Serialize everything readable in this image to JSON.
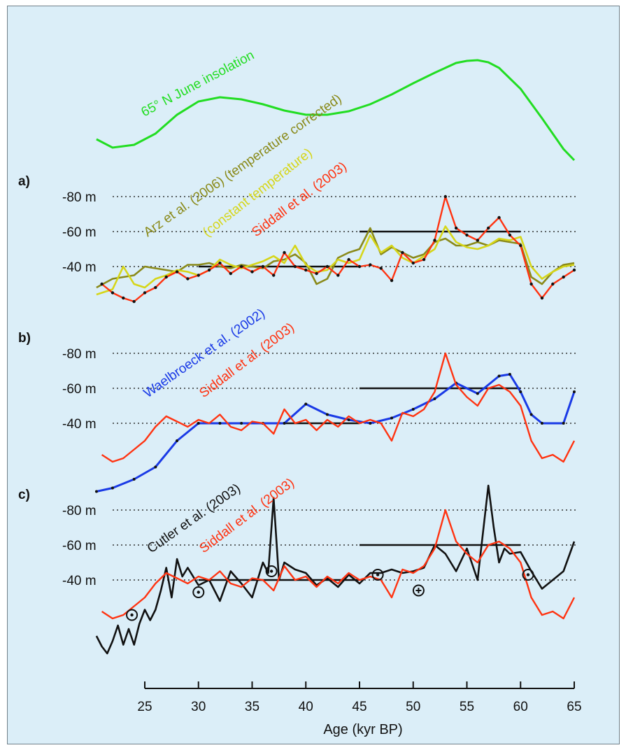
{
  "chart_data": {
    "type": "line",
    "xlabel": "Age (kyr BP)",
    "x_ticks": [
      25,
      30,
      35,
      40,
      45,
      50,
      55,
      60,
      65
    ],
    "xlim": [
      20.5,
      65
    ],
    "colors": {
      "insolation": "#22dd22",
      "siddall": "#ff3311",
      "arz_temp": "#8a8a1a",
      "arz_const": "#d6d61a",
      "waelbroeck": "#1a3ae6",
      "cutler": "#111111"
    },
    "insolation": {
      "name": "65° N June insolation",
      "x": [
        20.5,
        22,
        24,
        26,
        28,
        30,
        32,
        34,
        36,
        38,
        40,
        42,
        44,
        46,
        48,
        50,
        52,
        54,
        55,
        56,
        57,
        58,
        60,
        62,
        64,
        65
      ],
      "level": [
        0.2,
        0.08,
        0.12,
        0.28,
        0.55,
        0.74,
        0.8,
        0.77,
        0.7,
        0.61,
        0.55,
        0.55,
        0.6,
        0.7,
        0.84,
        1.0,
        1.15,
        1.29,
        1.32,
        1.33,
        1.3,
        1.22,
        0.92,
        0.5,
        0.06,
        -0.1
      ]
    },
    "panels": [
      {
        "label": "a)",
        "y_ticks": [
          "-80 m",
          "-60 m",
          "-40 m"
        ],
        "hlines": [
          {
            "from": 30,
            "to": 45,
            "y": -40
          },
          {
            "from": 45,
            "to": 60,
            "y": -60
          }
        ],
        "series": [
          {
            "name": "Arz et al. (2006) (temperature corrected)",
            "key": "arz_temp",
            "x": [
              20.5,
              22,
              24,
              25,
              26,
              27,
              28,
              29,
              30,
              31,
              32,
              33,
              34,
              35,
              36,
              37,
              38,
              39,
              40,
              41,
              42,
              43,
              44,
              45,
              46,
              47,
              48,
              49,
              50,
              51,
              52,
              53,
              54,
              55,
              56,
              57,
              58,
              59,
              60,
              61,
              62,
              63,
              64,
              65
            ],
            "y": [
              -28,
              -33,
              -35,
              -40,
              -39,
              -38,
              -37,
              -41,
              -41,
              -42,
              -40,
              -39,
              -41,
              -40,
              -39,
              -43,
              -44,
              -47,
              -42,
              -30,
              -33,
              -45,
              -48,
              -50,
              -62,
              -47,
              -51,
              -48,
              -45,
              -47,
              -54,
              -56,
              -52,
              -52,
              -54,
              -52,
              -55,
              -54,
              -53,
              -34,
              -30,
              -37,
              -41,
              -42
            ]
          },
          {
            "name": "(constant temperature)",
            "key": "arz_const",
            "x": [
              20.5,
              22,
              23,
              24,
              25,
              26,
              27,
              28,
              29,
              30,
              31,
              32,
              33,
              34,
              35,
              36,
              37,
              38,
              39,
              40,
              41,
              42,
              43,
              44,
              45,
              46,
              47,
              48,
              49,
              50,
              51,
              52,
              53,
              54,
              55,
              56,
              57,
              58,
              59,
              60,
              61,
              62,
              63,
              64,
              65
            ],
            "y": [
              -24,
              -27,
              -40,
              -30,
              -28,
              -33,
              -35,
              -38,
              -37,
              -35,
              -38,
              -44,
              -41,
              -39,
              -41,
              -43,
              -46,
              -42,
              -52,
              -41,
              -37,
              -38,
              -44,
              -42,
              -44,
              -58,
              -48,
              -52,
              -45,
              -42,
              -46,
              -50,
              -63,
              -54,
              -51,
              -50,
              -52,
              -56,
              -55,
              -57,
              -40,
              -33,
              -37,
              -40,
              -41
            ]
          },
          {
            "name": "Siddall et al. (2003)",
            "key": "siddall",
            "x": [
              21,
              22,
              23,
              24,
              25,
              26,
              27,
              28,
              29,
              30,
              31,
              32,
              33,
              34,
              35,
              36,
              37,
              38,
              39,
              40,
              41,
              42,
              43,
              44,
              45,
              46,
              47,
              48,
              49,
              50,
              51,
              52,
              53,
              54,
              55,
              56,
              57,
              58,
              59,
              60,
              61,
              62,
              63,
              64,
              65
            ],
            "y": [
              -30,
              -25,
              -22,
              -20,
              -25,
              -28,
              -34,
              -37,
              -33,
              -35,
              -38,
              -42,
              -36,
              -40,
              -37,
              -40,
              -35,
              -48,
              -40,
              -38,
              -36,
              -40,
              -35,
              -44,
              -40,
              -41,
              -39,
              -32,
              -48,
              -42,
              -44,
              -55,
              -80,
              -62,
              -58,
              -55,
              -62,
              -68,
              -58,
              -52,
              -30,
              -22,
              -30,
              -34,
              -38
            ]
          }
        ]
      },
      {
        "label": "b)",
        "y_ticks": [
          "-80 m",
          "-60 m",
          "-40 m"
        ],
        "hlines": [
          {
            "from": 30,
            "to": 45,
            "y": -40
          },
          {
            "from": 45,
            "to": 60,
            "y": -60
          }
        ],
        "series": [
          {
            "name": "Waelbroeck et al. (2002)",
            "key": "waelbroeck",
            "x": [
              20.5,
              22,
              24,
              26,
              28,
              30,
              32,
              34,
              36,
              38,
              40,
              42,
              44,
              46,
              48,
              50,
              52,
              54,
              56,
              58,
              59,
              60,
              61,
              62,
              64,
              65
            ],
            "y": [
              -1,
              -3,
              -8,
              -15,
              -30,
              -40,
              -40,
              -40,
              -40,
              -40,
              -51,
              -45,
              -42,
              -40,
              -43,
              -48,
              -54,
              -63,
              -57,
              -67,
              -68,
              -58,
              -45,
              -40,
              -40,
              -58
            ]
          },
          {
            "name": "Siddall et al. (2003)",
            "key": "siddall",
            "x": [
              21,
              22,
              23,
              24,
              25,
              26,
              27,
              28,
              29,
              30,
              31,
              32,
              33,
              34,
              35,
              36,
              37,
              38,
              39,
              40,
              41,
              42,
              43,
              44,
              45,
              46,
              47,
              48,
              49,
              50,
              51,
              52,
              53,
              54,
              55,
              56,
              57,
              58,
              59,
              60,
              61,
              62,
              63,
              64,
              65
            ],
            "y": [
              -22,
              -18,
              -20,
              -25,
              -30,
              -38,
              -44,
              -41,
              -38,
              -42,
              -40,
              -45,
              -38,
              -36,
              -41,
              -40,
              -34,
              -48,
              -40,
              -42,
              -36,
              -42,
              -38,
              -44,
              -40,
              -42,
              -40,
              -30,
              -46,
              -44,
              -48,
              -58,
              -80,
              -62,
              -55,
              -50,
              -60,
              -62,
              -58,
              -50,
              -30,
              -20,
              -22,
              -18,
              -30
            ]
          }
        ]
      },
      {
        "label": "c)",
        "y_ticks": [
          "-80 m",
          "-60 m",
          "-40 m"
        ],
        "hlines": [
          {
            "from": 30,
            "to": 45,
            "y": -40
          },
          {
            "from": 45,
            "to": 60,
            "y": -60
          }
        ],
        "series": [
          {
            "name": "Cutler et al. (2003)",
            "key": "cutler",
            "x": [
              20.5,
              21,
              21.5,
              22,
              22.5,
              23,
              23.5,
              24,
              24.5,
              25,
              25.5,
              26,
              26.5,
              27,
              27.5,
              28,
              28.5,
              29,
              30,
              31,
              32,
              33,
              34,
              35,
              36,
              36.5,
              37,
              37.5,
              38,
              39,
              40,
              41,
              42,
              43,
              44,
              45,
              46,
              47,
              48,
              49,
              50,
              51,
              52,
              53,
              54,
              55,
              56,
              57,
              57.5,
              58,
              58.5,
              59,
              60,
              61,
              62,
              63,
              64,
              65
            ],
            "y": [
              -8,
              -2,
              2,
              -5,
              -14,
              -3,
              -12,
              -3,
              -15,
              -23,
              -17,
              -23,
              -34,
              -47,
              -30,
              -52,
              -42,
              -47,
              -37,
              -40,
              -28,
              -45,
              -38,
              -30,
              -50,
              -44,
              -87,
              -40,
              -50,
              -46,
              -44,
              -37,
              -41,
              -36,
              -43,
              -38,
              -44,
              -44,
              -46,
              -44,
              -45,
              -47,
              -60,
              -55,
              -45,
              -58,
              -40,
              -94,
              -70,
              -50,
              -58,
              -55,
              -56,
              -45,
              -35,
              -40,
              -45,
              -62
            ]
          },
          {
            "name": "Siddall et al. (2003)",
            "key": "siddall",
            "x": [
              21,
              22,
              23,
              24,
              25,
              26,
              27,
              28,
              29,
              30,
              31,
              32,
              33,
              34,
              35,
              36,
              37,
              38,
              39,
              40,
              41,
              42,
              43,
              44,
              45,
              46,
              47,
              48,
              49,
              50,
              51,
              52,
              53,
              54,
              55,
              56,
              57,
              58,
              59,
              60,
              61,
              62,
              63,
              64,
              65
            ],
            "y": [
              -22,
              -18,
              -20,
              -25,
              -30,
              -38,
              -44,
              -41,
              -38,
              -42,
              -40,
              -45,
              -38,
              -36,
              -41,
              -40,
              -34,
              -48,
              -40,
              -42,
              -36,
              -42,
              -38,
              -44,
              -40,
              -42,
              -40,
              -30,
              -46,
              -44,
              -48,
              -58,
              -80,
              -62,
              -55,
              -50,
              -60,
              -62,
              -58,
              -50,
              -30,
              -20,
              -22,
              -18,
              -30
            ]
          }
        ],
        "markers": [
          {
            "x": 23.8,
            "y": -20,
            "sym": "dot"
          },
          {
            "x": 30,
            "y": -33,
            "sym": "dot"
          },
          {
            "x": 36.8,
            "y": -45,
            "sym": "dot"
          },
          {
            "x": 46.7,
            "y": -43,
            "sym": "dot"
          },
          {
            "x": 50.5,
            "y": -34,
            "sym": "plus"
          },
          {
            "x": 60.7,
            "y": -43,
            "sym": "dot"
          }
        ]
      }
    ]
  }
}
